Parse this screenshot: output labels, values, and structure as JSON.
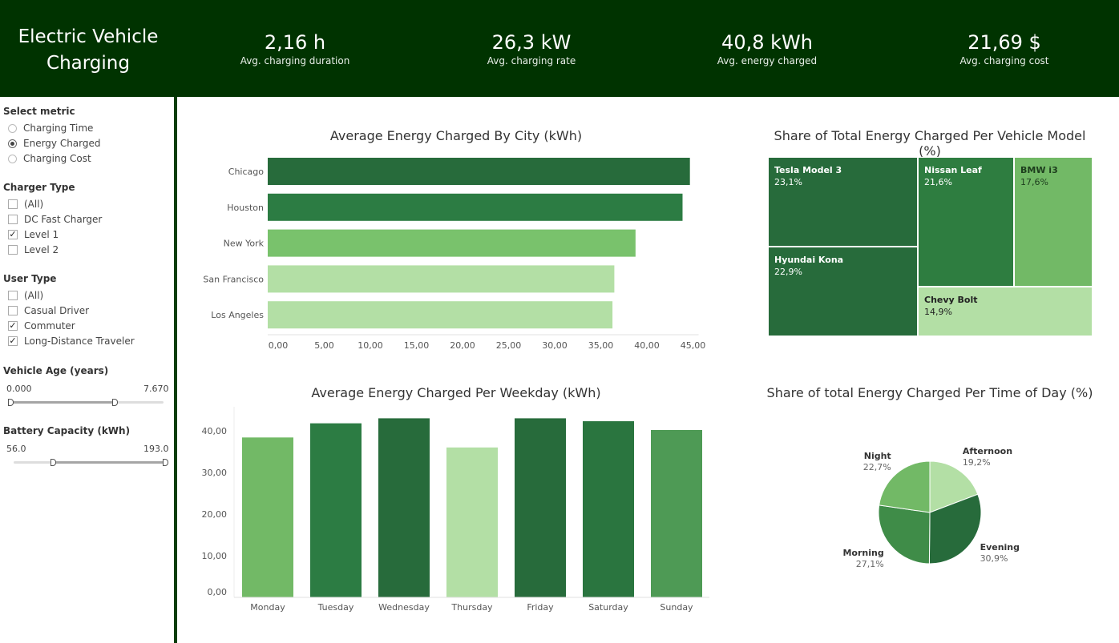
{
  "header": {
    "title_line1": "Electric Vehicle",
    "title_line2": "Charging",
    "kpis": [
      {
        "value": "2,16 h",
        "label": "Avg. charging duration"
      },
      {
        "value": "26,3 kW",
        "label": "Avg. charging rate"
      },
      {
        "value": "40,8 kWh",
        "label": "Avg. energy charged"
      },
      {
        "value": "21,69 $",
        "label": "Avg. charging cost"
      }
    ]
  },
  "filters": {
    "metric": {
      "title": "Select metric",
      "options": [
        "Charging Time",
        "Energy Charged",
        "Charging Cost"
      ],
      "selected": "Energy Charged"
    },
    "charger_type": {
      "title": "Charger Type",
      "options": [
        {
          "label": "(All)",
          "checked": false
        },
        {
          "label": "DC Fast Charger",
          "checked": false
        },
        {
          "label": "Level 1",
          "checked": true
        },
        {
          "label": "Level 2",
          "checked": false
        }
      ]
    },
    "user_type": {
      "title": "User Type",
      "options": [
        {
          "label": "(All)",
          "checked": false
        },
        {
          "label": "Casual Driver",
          "checked": false
        },
        {
          "label": "Commuter",
          "checked": true
        },
        {
          "label": "Long-Distance Traveler",
          "checked": true
        }
      ]
    },
    "vehicle_age": {
      "title": "Vehicle Age (years)",
      "min": "0.000",
      "max": "7.670"
    },
    "battery_capacity": {
      "title": "Battery Capacity (kWh)",
      "min": "56.0",
      "max": "193.0"
    }
  },
  "chart_data": [
    {
      "type": "bar",
      "orientation": "horizontal",
      "title": "Average Energy Charged By City (kWh)",
      "categories": [
        "Chicago",
        "Houston",
        "New York",
        "San Francisco",
        "Los Angeles"
      ],
      "values": [
        45.8,
        45.0,
        39.9,
        37.6,
        37.4
      ],
      "colors": [
        "#276b3b",
        "#2c7c43",
        "#79c26c",
        "#b3dfa5",
        "#b3dfa5"
      ],
      "xlim": [
        0,
        45
      ],
      "xticks": [
        "0,00",
        "5,00",
        "10,00",
        "15,00",
        "20,00",
        "25,00",
        "30,00",
        "35,00",
        "40,00",
        "45,00"
      ]
    },
    {
      "type": "treemap",
      "title": "Share of Total Energy Charged Per Vehicle Model (%)",
      "items": [
        {
          "name": "Tesla Model 3",
          "pct": "23,1%",
          "value": 23.1,
          "color": "#276b3b"
        },
        {
          "name": "Hyundai Kona",
          "pct": "22,9%",
          "value": 22.9,
          "color": "#276b3b"
        },
        {
          "name": "Nissan Leaf",
          "pct": "21,6%",
          "value": 21.6,
          "color": "#2e7d40"
        },
        {
          "name": "BMW i3",
          "pct": "17,6%",
          "value": 17.6,
          "color": "#72b966"
        },
        {
          "name": "Chevy Bolt",
          "pct": "14,9%",
          "value": 14.9,
          "color": "#b3dfa5"
        }
      ]
    },
    {
      "type": "bar",
      "orientation": "vertical",
      "title": "Average Energy Charged Per Weekday (kWh)",
      "categories": [
        "Monday",
        "Tuesday",
        "Wednesday",
        "Thursday",
        "Friday",
        "Saturday",
        "Sunday"
      ],
      "values": [
        38.4,
        41.8,
        43.0,
        36.0,
        43.0,
        42.3,
        40.2
      ],
      "colors": [
        "#72b966",
        "#2c7c43",
        "#276b3b",
        "#b3dfa5",
        "#276b3b",
        "#2a753f",
        "#4e9a55"
      ],
      "ylim": [
        0,
        43
      ],
      "yticks": [
        "0,00",
        "10,00",
        "20,00",
        "30,00",
        "40,00"
      ]
    },
    {
      "type": "pie",
      "title": "Share of total Energy Charged Per Time of Day (%)",
      "slices": [
        {
          "name": "Afternoon",
          "pct": "19,2%",
          "value": 19.2,
          "color": "#b3dfa5"
        },
        {
          "name": "Evening",
          "pct": "30,9%",
          "value": 30.9,
          "color": "#276b3b"
        },
        {
          "name": "Morning",
          "pct": "27,1%",
          "value": 27.1,
          "color": "#3f8c48"
        },
        {
          "name": "Night",
          "pct": "22,7%",
          "value": 22.7,
          "color": "#72b966"
        }
      ]
    }
  ]
}
